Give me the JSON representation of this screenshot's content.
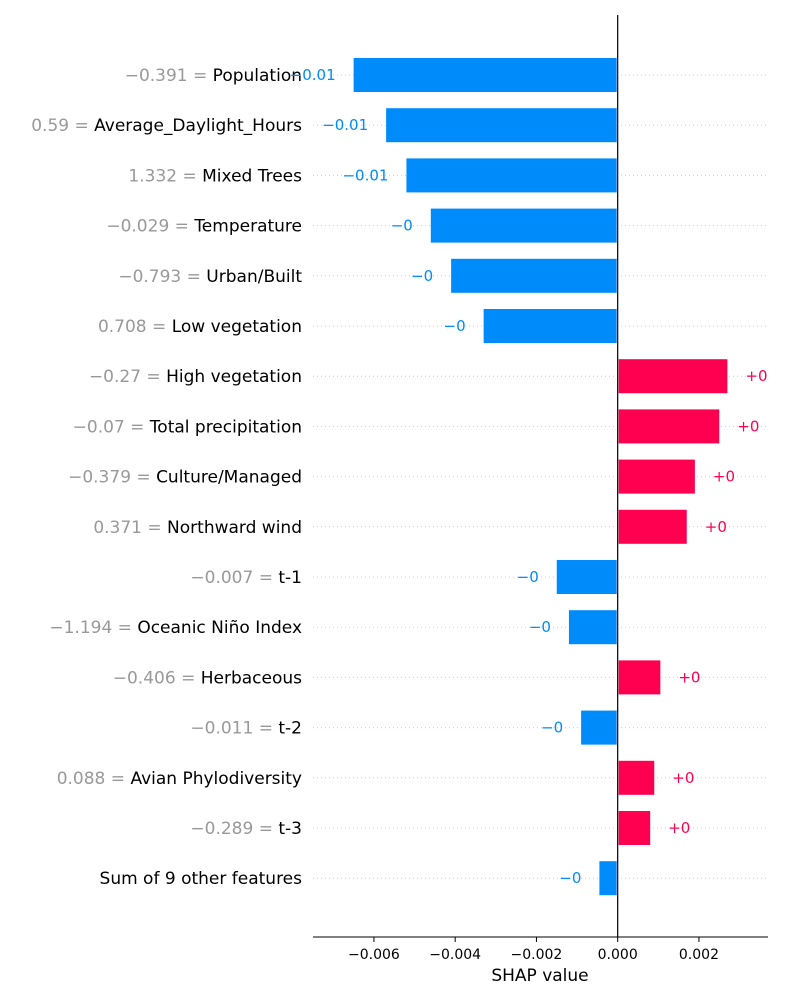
{
  "chart_data": {
    "type": "bar",
    "orientation": "horizontal",
    "xlabel": "SHAP value",
    "xlim": [
      -0.0075,
      0.0037
    ],
    "xticks": [
      {
        "value": -0.006,
        "label": "−0.006"
      },
      {
        "value": -0.004,
        "label": "−0.004"
      },
      {
        "value": -0.002,
        "label": "−0.002"
      },
      {
        "value": 0.0,
        "label": "0.000"
      },
      {
        "value": 0.002,
        "label": "0.002"
      }
    ],
    "grid": "horizontal dotted row lines",
    "colors": {
      "positive": "#ff0051",
      "negative": "#008bfb",
      "axis": "#000000",
      "feature_value": "#999999",
      "grid": "#cccccc"
    },
    "features": [
      {
        "feature_value": "−0.391 =",
        "name": "Population",
        "shap": -0.0065,
        "label": "−0.01"
      },
      {
        "feature_value": "0.59 =",
        "name": "Average_Daylight_Hours",
        "shap": -0.0057,
        "label": "−0.01"
      },
      {
        "feature_value": "1.332 =",
        "name": "Mixed Trees",
        "shap": -0.0052,
        "label": "−0.01"
      },
      {
        "feature_value": "−0.029 =",
        "name": "Temperature",
        "shap": -0.0046,
        "label": "−0"
      },
      {
        "feature_value": "−0.793 =",
        "name": "Urban/Built",
        "shap": -0.0041,
        "label": "−0"
      },
      {
        "feature_value": "0.708 =",
        "name": "Low vegetation",
        "shap": -0.0033,
        "label": "−0"
      },
      {
        "feature_value": "−0.27 =",
        "name": "High vegetation",
        "shap": 0.0027,
        "label": "+0"
      },
      {
        "feature_value": "−0.07 =",
        "name": "Total precipitation",
        "shap": 0.0025,
        "label": "+0"
      },
      {
        "feature_value": "−0.379 =",
        "name": "Culture/Managed",
        "shap": 0.0019,
        "label": "+0"
      },
      {
        "feature_value": "0.371 =",
        "name": "Northward wind",
        "shap": 0.0017,
        "label": "+0"
      },
      {
        "feature_value": "−0.007 =",
        "name": "t-1",
        "shap": -0.0015,
        "label": "−0"
      },
      {
        "feature_value": "−1.194 =",
        "name": "Oceanic Niño Index",
        "shap": -0.0012,
        "label": "−0"
      },
      {
        "feature_value": "−0.406 =",
        "name": "Herbaceous",
        "shap": 0.00105,
        "label": "+0"
      },
      {
        "feature_value": "−0.011 =",
        "name": "t-2",
        "shap": -0.0009,
        "label": "−0"
      },
      {
        "feature_value": "0.088 =",
        "name": "Avian Phylodiversity",
        "shap": 0.0009,
        "label": "+0"
      },
      {
        "feature_value": "−0.289 =",
        "name": "t-3",
        "shap": 0.0008,
        "label": "+0"
      },
      {
        "feature_value": "",
        "name": "Sum of 9 other features",
        "shap": -0.00045,
        "label": "−0"
      }
    ]
  }
}
